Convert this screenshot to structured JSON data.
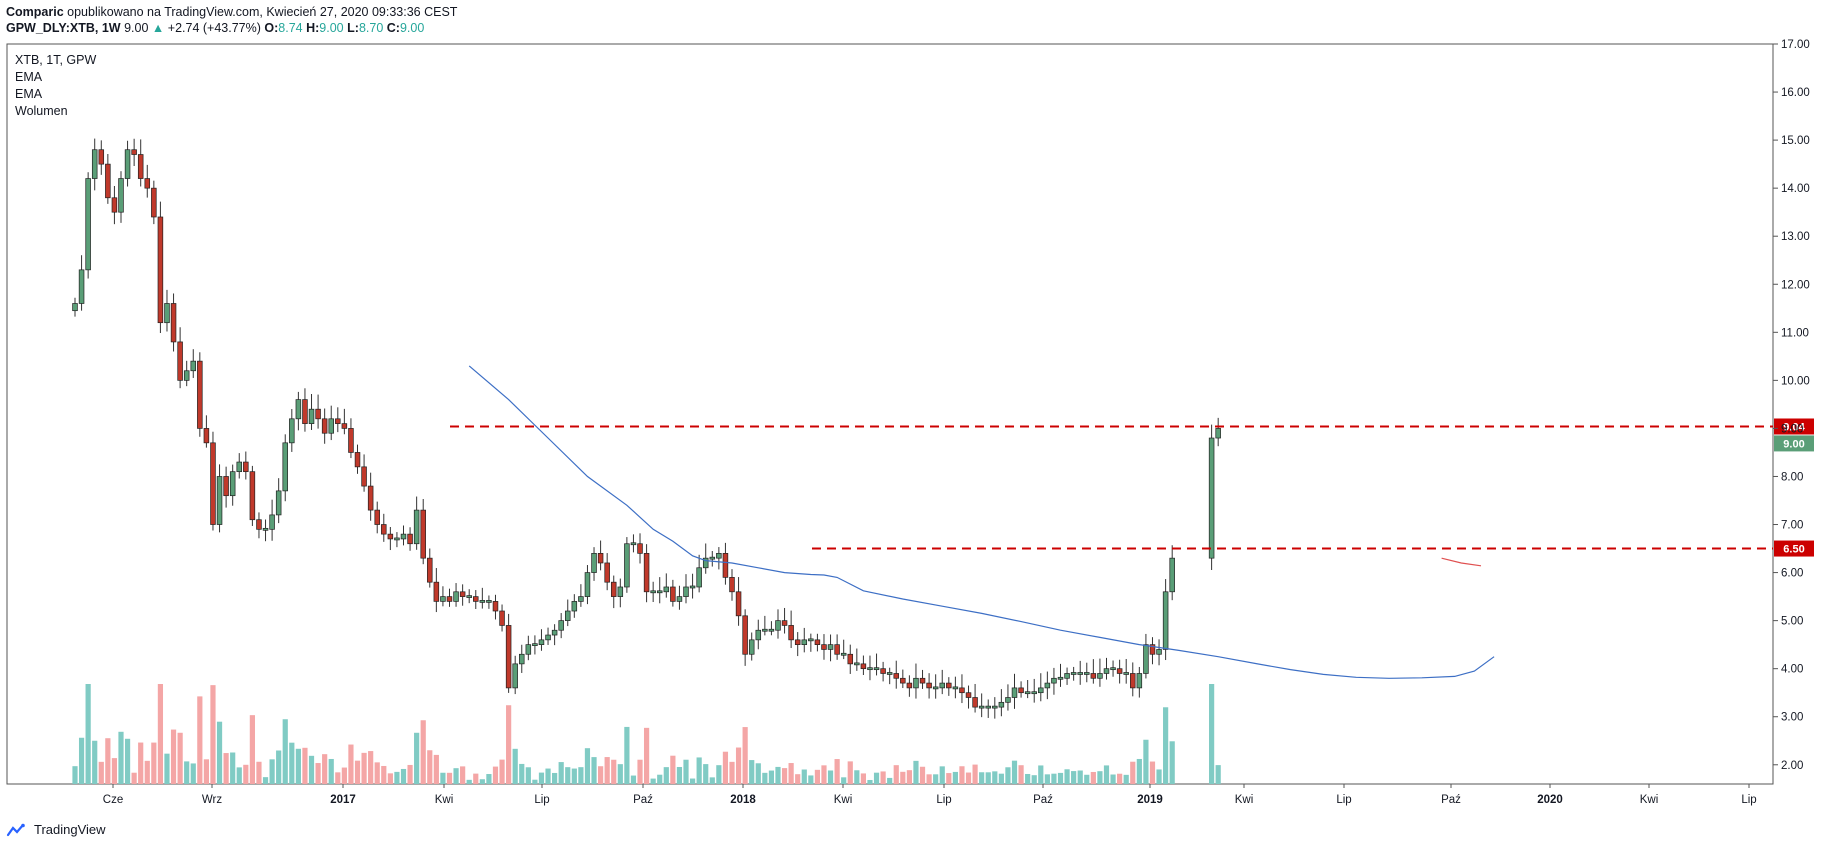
{
  "header": {
    "author": "Comparic",
    "published": "opublikowano na TradingView.com, Kwiecień 27, 2020 09:33:36 CEST",
    "symbol": "GPW_DLY:XTB, 1W",
    "last": "9.00",
    "change_arrow": "▲",
    "change": "+2.74 (+43.77%)",
    "o_label": "O:",
    "o": "8.74",
    "h_label": "H:",
    "h": "9.00",
    "l_label": "L:",
    "l": "8.70",
    "c_label": "C:",
    "c": "9.00"
  },
  "legend": {
    "symbol": "XTB, 1T, GPW",
    "ema1": "EMA",
    "ema2": "EMA",
    "volume": "Wolumen"
  },
  "footer": {
    "brand": "TradingView"
  },
  "colors": {
    "up": "#26a69a",
    "down": "#ef5350",
    "up_body": "#5a9e77",
    "down_body": "#c0392b",
    "ema_long": "#3d6fc5",
    "ema_short": "#e05050",
    "level": "#cc0000",
    "vol_up": "#80cbc4",
    "vol_down": "#f4a6a6"
  },
  "chart_data": {
    "type": "candlestick",
    "symbol": "GPW_DLY:XTB",
    "interval": "1W",
    "ylim": [
      1.6,
      17.0
    ],
    "y_ticks": [
      "2.00",
      "3.00",
      "4.00",
      "5.00",
      "6.00",
      "7.00",
      "8.00",
      "9.00",
      "10.00",
      "11.00",
      "12.00",
      "13.00",
      "14.00",
      "15.00",
      "16.00",
      "17.00"
    ],
    "x_ticks": [
      "Cze",
      "Wrz",
      "2017",
      "Kwi",
      "Lip",
      "Paź",
      "2018",
      "Kwi",
      "Lip",
      "Paź",
      "2019",
      "Kwi",
      "Lip",
      "Paź",
      "2020",
      "Kwi",
      "Lip"
    ],
    "weekly_close": [
      11.6,
      12.3,
      14.2,
      14.8,
      14.5,
      13.8,
      13.5,
      14.2,
      14.8,
      14.7,
      14.2,
      14.0,
      13.4,
      11.2,
      11.6,
      10.8,
      10.0,
      10.2,
      10.4,
      9.0,
      8.7,
      7.0,
      8.0,
      7.6,
      8.1,
      8.3,
      8.1,
      7.1,
      6.9,
      6.9,
      7.2,
      7.7,
      8.7,
      9.2,
      9.6,
      9.1,
      9.4,
      9.2,
      8.9,
      9.2,
      9.1,
      9.0,
      8.5,
      8.2,
      7.8,
      7.3,
      7.0,
      6.8,
      6.7,
      6.7,
      6.8,
      6.6,
      7.3,
      6.3,
      5.8,
      5.4,
      5.5,
      5.4,
      5.6,
      5.5,
      5.5,
      5.4,
      5.4,
      5.4,
      5.2,
      4.9,
      3.6,
      4.1,
      4.3,
      4.5,
      4.5,
      4.6,
      4.7,
      4.8,
      5.0,
      5.2,
      5.4,
      5.5,
      6.0,
      6.4,
      6.2,
      5.8,
      5.5,
      5.7,
      6.6,
      6.6,
      6.4,
      5.6,
      5.6,
      5.6,
      5.7,
      5.4,
      5.5,
      5.7,
      5.7,
      6.1,
      6.3,
      6.3,
      6.4,
      5.9,
      5.6,
      5.1,
      4.3,
      4.6,
      4.8,
      4.8,
      4.8,
      5.0,
      4.9,
      4.6,
      4.5,
      4.6,
      4.6,
      4.5,
      4.4,
      4.5,
      4.3,
      4.3,
      4.1,
      4.1,
      4.0,
      4.0,
      4.0,
      3.9,
      3.9,
      3.8,
      3.7,
      3.6,
      3.8,
      3.7,
      3.6,
      3.6,
      3.7,
      3.6,
      3.6,
      3.5,
      3.4,
      3.2,
      3.2,
      3.2,
      3.2,
      3.3,
      3.4,
      3.6,
      3.5,
      3.5,
      3.5,
      3.6,
      3.7,
      3.8,
      3.8,
      3.9,
      3.9,
      3.9,
      3.9,
      3.8,
      3.9,
      4.0,
      4.0,
      3.9,
      3.9,
      3.6,
      3.9,
      4.5,
      4.3,
      4.4,
      5.6,
      6.3,
      null,
      null,
      null,
      null,
      null,
      8.8,
      9.0
    ],
    "ema_long": [
      [
        60,
        10.3
      ],
      [
        66,
        9.6
      ],
      [
        72,
        8.8
      ],
      [
        78,
        8.0
      ],
      [
        84,
        7.4
      ],
      [
        88,
        6.9
      ],
      [
        91,
        6.65
      ],
      [
        94,
        6.35
      ],
      [
        96,
        6.25
      ],
      [
        100,
        6.2
      ],
      [
        104,
        6.1
      ],
      [
        108,
        6.0
      ],
      [
        112,
        5.96
      ],
      [
        114,
        5.95
      ],
      [
        116,
        5.9
      ],
      [
        120,
        5.62
      ],
      [
        126,
        5.45
      ],
      [
        132,
        5.3
      ],
      [
        138,
        5.15
      ],
      [
        144,
        4.98
      ],
      [
        150,
        4.8
      ],
      [
        156,
        4.65
      ],
      [
        162,
        4.5
      ],
      [
        168,
        4.38
      ],
      [
        174,
        4.25
      ],
      [
        180,
        4.1
      ],
      [
        185,
        3.98
      ],
      [
        190,
        3.88
      ],
      [
        195,
        3.82
      ],
      [
        200,
        3.8
      ],
      [
        205,
        3.81
      ],
      [
        210,
        3.84
      ],
      [
        213,
        3.95
      ],
      [
        216,
        4.25
      ]
    ],
    "ema_short": [
      [
        208,
        6.3
      ],
      [
        211,
        6.2
      ],
      [
        214,
        6.14
      ]
    ],
    "levels": [
      9.04,
      6.5
    ],
    "level_labels": [
      "9.04",
      "6.50"
    ],
    "last_price_label": "9.00",
    "volume": "bars under price, green=up week, red=down week"
  }
}
